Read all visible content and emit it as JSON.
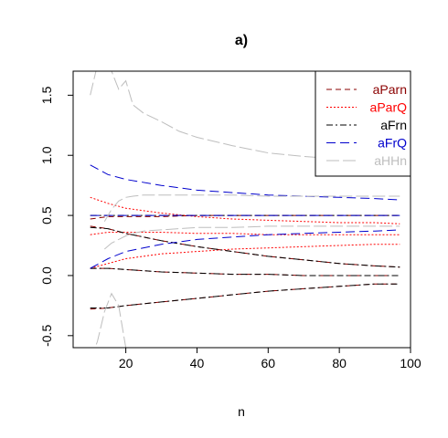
{
  "chart_data": {
    "type": "line",
    "title": "a)",
    "xlabel": "n",
    "ylabel": "",
    "xlim": [
      5.2,
      100
    ],
    "ylim": [
      -0.6,
      1.7
    ],
    "xticks": [
      "20",
      "40",
      "60",
      "80",
      "100"
    ],
    "yticks": [
      "-0.5",
      "0.0",
      "0.5",
      "1.0",
      "1.5"
    ],
    "grid": false,
    "legend_position": "top-right",
    "legend": [
      {
        "label": "aParn",
        "color": "#8b0000",
        "dash": "6,4"
      },
      {
        "label": "aParQ",
        "color": "#ff0000",
        "dash": "2,2"
      },
      {
        "label": "aFrn",
        "color": "#000000",
        "dash": "7,3,2,3"
      },
      {
        "label": "aFrQ",
        "color": "#0000cd",
        "dash": "10,5"
      },
      {
        "label": "aHHn",
        "color": "#bebebe",
        "dash": "14,4"
      }
    ],
    "series": [
      {
        "name": "aParn",
        "color": "#8b0000",
        "dash": "6,4",
        "x": [
          10,
          15,
          20,
          30,
          40,
          50,
          60,
          70,
          80,
          90,
          97
        ],
        "lines": [
          [
            0.47,
            0.49,
            0.49,
            0.49,
            0.5,
            0.5,
            0.5,
            0.5,
            0.5,
            0.5,
            0.5
          ],
          [
            0.41,
            0.39,
            0.35,
            0.29,
            0.24,
            0.2,
            0.16,
            0.13,
            0.1,
            0.08,
            0.07
          ],
          [
            0.06,
            0.06,
            0.05,
            0.03,
            0.02,
            0.01,
            0.01,
            0.0,
            0.0,
            0.0,
            0.0
          ],
          [
            -0.28,
            -0.27,
            -0.25,
            -0.22,
            -0.19,
            -0.16,
            -0.13,
            -0.11,
            -0.09,
            -0.07,
            -0.07
          ]
        ]
      },
      {
        "name": "aParQ",
        "color": "#ff0000",
        "dash": "2,2",
        "x": [
          10,
          15,
          20,
          30,
          40,
          50,
          60,
          70,
          80,
          90,
          97
        ],
        "lines": [
          [
            0.65,
            0.6,
            0.56,
            0.52,
            0.49,
            0.47,
            0.46,
            0.45,
            0.44,
            0.44,
            0.43
          ],
          [
            0.34,
            0.36,
            0.36,
            0.36,
            0.35,
            0.35,
            0.34,
            0.34,
            0.34,
            0.34,
            0.34
          ],
          [
            0.06,
            0.1,
            0.14,
            0.18,
            0.2,
            0.22,
            0.23,
            0.24,
            0.25,
            0.26,
            0.26
          ]
        ]
      },
      {
        "name": "aFrn",
        "color": "#000000",
        "dash": "7,3,2,3",
        "x": [
          10,
          15,
          20,
          30,
          40,
          50,
          60,
          70,
          80,
          90,
          97
        ],
        "lines": [
          [
            0.5,
            0.5,
            0.5,
            0.5,
            0.5,
            0.5,
            0.5,
            0.5,
            0.5,
            0.5,
            0.5
          ],
          [
            0.4,
            0.39,
            0.35,
            0.29,
            0.24,
            0.2,
            0.16,
            0.13,
            0.1,
            0.08,
            0.07
          ],
          [
            0.06,
            0.06,
            0.05,
            0.03,
            0.02,
            0.01,
            0.01,
            0.0,
            0.0,
            0.0,
            0.0
          ],
          [
            -0.27,
            -0.27,
            -0.25,
            -0.22,
            -0.19,
            -0.16,
            -0.13,
            -0.11,
            -0.09,
            -0.07,
            -0.07
          ]
        ]
      },
      {
        "name": "aFrQ",
        "color": "#0000cd",
        "dash": "10,5",
        "x": [
          10,
          15,
          20,
          30,
          40,
          50,
          60,
          70,
          80,
          90,
          97
        ],
        "lines": [
          [
            0.92,
            0.84,
            0.8,
            0.75,
            0.71,
            0.69,
            0.67,
            0.66,
            0.65,
            0.64,
            0.63
          ],
          [
            0.5,
            0.5,
            0.5,
            0.5,
            0.5,
            0.5,
            0.5,
            0.5,
            0.5,
            0.5,
            0.5
          ],
          [
            0.06,
            0.14,
            0.2,
            0.26,
            0.3,
            0.32,
            0.34,
            0.35,
            0.36,
            0.37,
            0.38
          ]
        ]
      },
      {
        "name": "aHHn",
        "color": "#bebebe",
        "dash": "14,4",
        "x": [
          10,
          12,
          14,
          16,
          18,
          20,
          22,
          25,
          30,
          35,
          40,
          50,
          60,
          70,
          80,
          90,
          97
        ],
        "lines": [
          [
            1.5,
            1.75,
            1.9,
            1.7,
            1.55,
            1.62,
            1.42,
            1.35,
            1.28,
            1.2,
            1.15,
            1.08,
            1.02,
            0.99,
            0.97,
            0.96,
            0.95
          ],
          [
            null,
            null,
            0.45,
            0.55,
            0.62,
            0.65,
            0.66,
            0.67,
            0.67,
            0.67,
            0.67,
            0.67,
            0.66,
            0.66,
            0.66,
            0.66,
            0.66
          ],
          [
            null,
            null,
            0.22,
            0.27,
            0.3,
            0.33,
            0.35,
            0.37,
            0.38,
            0.39,
            0.4,
            0.4,
            0.41,
            0.41,
            0.41,
            0.41,
            0.41
          ],
          [
            -0.7,
            -0.55,
            -0.3,
            -0.15,
            -0.25,
            -0.6,
            -0.75,
            null,
            null,
            null,
            null,
            null,
            null,
            null,
            null,
            null,
            null
          ]
        ]
      }
    ]
  }
}
